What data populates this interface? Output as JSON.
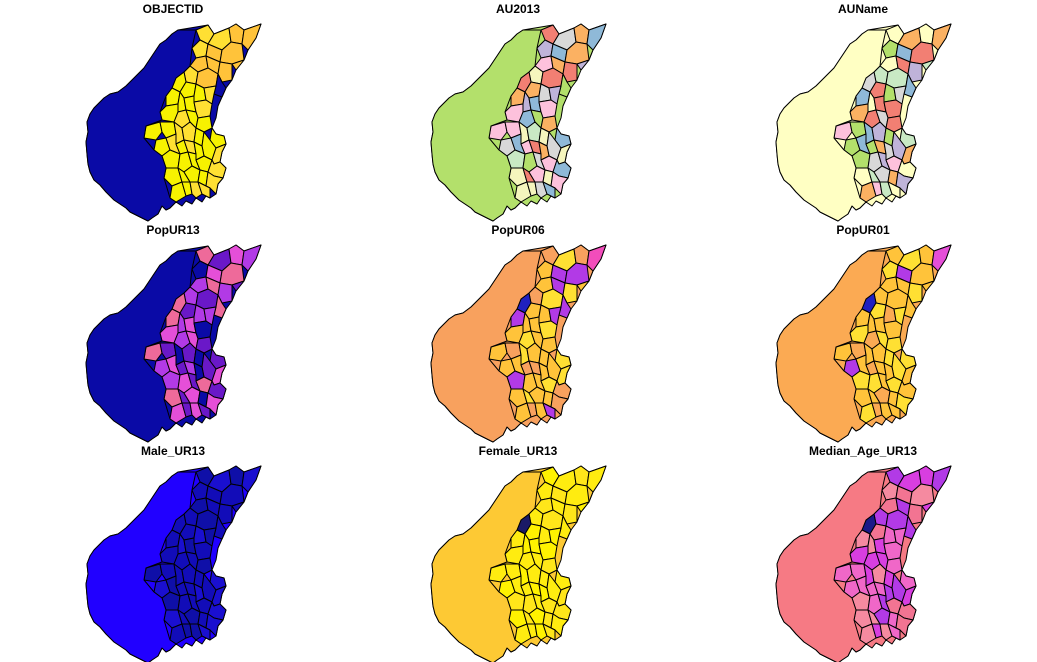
{
  "figure": {
    "type": "choropleth-map-grid",
    "rows": 3,
    "cols": 3,
    "panels": [
      {
        "title": "OBJECTID",
        "scheme": "objectid",
        "base": "#0a0aa6",
        "region_colors": [
          "#ffe033",
          "#ffc33a",
          "#f7f200",
          "#0a0aa6"
        ]
      },
      {
        "title": "AU2013",
        "scheme": "au",
        "base": "#b3e06b",
        "region_colors": [
          "#8fb9d8",
          "#f27f73",
          "#bfb3d9",
          "#f5f5bd",
          "#fdc1dc",
          "#b3e06b",
          "#fbb162",
          "#d8d8d8",
          "#c9e9c4"
        ]
      },
      {
        "title": "AUName",
        "scheme": "au",
        "base": "#ffffc3",
        "region_colors": [
          "#8fb9d8",
          "#f27f73",
          "#bfb3d9",
          "#ffffc3",
          "#fdc1dc",
          "#b3e06b",
          "#fbb162",
          "#d8d8d8",
          "#c9e9c4"
        ]
      },
      {
        "title": "PopUR13",
        "scheme": "pop",
        "base": "#0a0aa6",
        "region_colors": [
          "#e54fd8",
          "#b23ae6",
          "#ee6a9a",
          "#6a18c8",
          "#0a0aa6"
        ]
      },
      {
        "title": "PopUR06",
        "scheme": "pop06",
        "base": "#f8a15e",
        "region_colors": [
          "#ffc33a",
          "#ffe033",
          "#f8a15e",
          "#f24dbb",
          "#b23ae6"
        ]
      },
      {
        "title": "PopUR01",
        "scheme": "pop01",
        "base": "#fbaa53",
        "region_colors": [
          "#ffc33a",
          "#ffe033",
          "#fbaa53",
          "#e54fd8",
          "#b23ae6"
        ]
      },
      {
        "title": "Male_UR13",
        "scheme": "male",
        "base": "#2100ff",
        "region_colors": [
          "#0f0fa8",
          "#1a0fd0",
          "#120cb8"
        ]
      },
      {
        "title": "Female_UR13",
        "scheme": "female",
        "base": "#fdc934",
        "region_colors": [
          "#ffec10",
          "#fff200",
          "#ffe61a"
        ]
      },
      {
        "title": "Median_Age_UR13",
        "scheme": "age",
        "base": "#f67a84",
        "region_colors": [
          "#f067c8",
          "#d83ee0",
          "#f58aa0",
          "#b23ae6",
          "#f27492"
        ]
      }
    ]
  }
}
